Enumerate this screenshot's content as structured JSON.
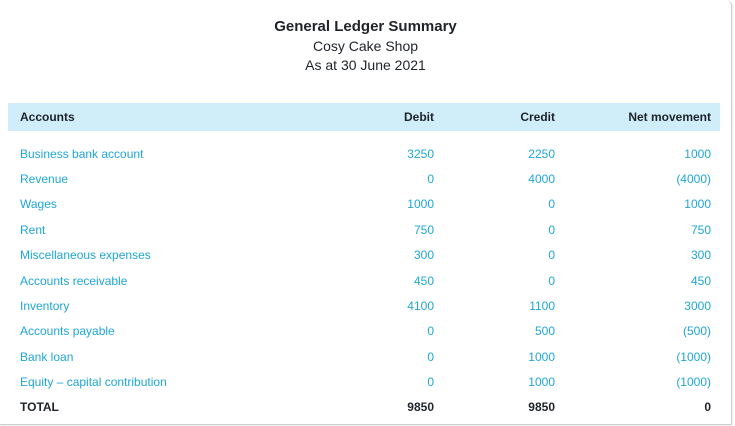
{
  "report": {
    "title": "General Ledger Summary",
    "company": "Cosy Cake Shop",
    "date": "As at 30 June 2021"
  },
  "columns": {
    "accounts": "Accounts",
    "debit": "Debit",
    "credit": "Credit",
    "net": "Net movement"
  },
  "rows": [
    {
      "account": "Business bank account",
      "debit": "3250",
      "credit": "2250",
      "net": "1000"
    },
    {
      "account": "Revenue",
      "debit": "0",
      "credit": "4000",
      "net": "(4000)"
    },
    {
      "account": "Wages",
      "debit": "1000",
      "credit": "0",
      "net": "1000"
    },
    {
      "account": "Rent",
      "debit": "750",
      "credit": "0",
      "net": "750"
    },
    {
      "account": "Miscellaneous expenses",
      "debit": "300",
      "credit": "0",
      "net": "300"
    },
    {
      "account": "Accounts receivable",
      "debit": "450",
      "credit": "0",
      "net": "450"
    },
    {
      "account": "Inventory",
      "debit": "4100",
      "credit": "1100",
      "net": "3000"
    },
    {
      "account": "Accounts payable",
      "debit": "0",
      "credit": "500",
      "net": "(500)"
    },
    {
      "account": "Bank loan",
      "debit": "0",
      "credit": "1000",
      "net": "(1000)"
    },
    {
      "account": "Equity – capital contribution",
      "debit": "0",
      "credit": "1000",
      "net": "(1000)"
    }
  ],
  "total": {
    "label": "TOTAL",
    "debit": "9850",
    "credit": "9850",
    "net": "0"
  },
  "colors": {
    "header_bg": "#cfeef9",
    "link": "#1fa6d8",
    "text": "#1e2329"
  }
}
